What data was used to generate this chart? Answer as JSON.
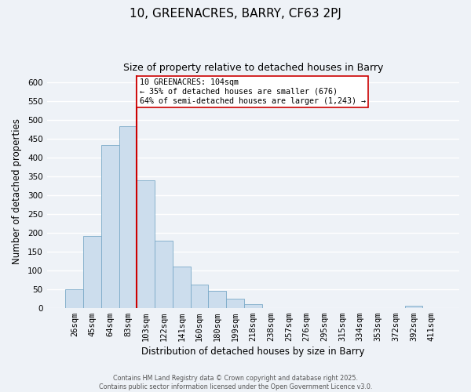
{
  "title": "10, GREENACRES, BARRY, CF63 2PJ",
  "subtitle": "Size of property relative to detached houses in Barry",
  "xlabel": "Distribution of detached houses by size in Barry",
  "ylabel": "Number of detached properties",
  "bar_labels": [
    "26sqm",
    "45sqm",
    "64sqm",
    "83sqm",
    "103sqm",
    "122sqm",
    "141sqm",
    "160sqm",
    "180sqm",
    "199sqm",
    "218sqm",
    "238sqm",
    "257sqm",
    "276sqm",
    "295sqm",
    "315sqm",
    "334sqm",
    "353sqm",
    "372sqm",
    "392sqm",
    "411sqm"
  ],
  "bar_values": [
    50,
    192,
    434,
    484,
    340,
    178,
    110,
    62,
    45,
    25,
    10,
    0,
    0,
    0,
    0,
    0,
    0,
    0,
    0,
    5,
    0
  ],
  "bar_color": "#ccdded",
  "bar_edge_color": "#7aaac8",
  "vline_index": 4,
  "vline_color": "#cc0000",
  "annotation_text": "10 GREENACRES: 104sqm\n← 35% of detached houses are smaller (676)\n64% of semi-detached houses are larger (1,243) →",
  "annotation_box_color": "#ffffff",
  "annotation_box_edge_color": "#cc0000",
  "ylim": [
    0,
    620
  ],
  "yticks": [
    0,
    50,
    100,
    150,
    200,
    250,
    300,
    350,
    400,
    450,
    500,
    550,
    600
  ],
  "bg_color": "#eef2f7",
  "grid_color": "#ffffff",
  "footer_line1": "Contains HM Land Registry data © Crown copyright and database right 2025.",
  "footer_line2": "Contains public sector information licensed under the Open Government Licence v3.0."
}
